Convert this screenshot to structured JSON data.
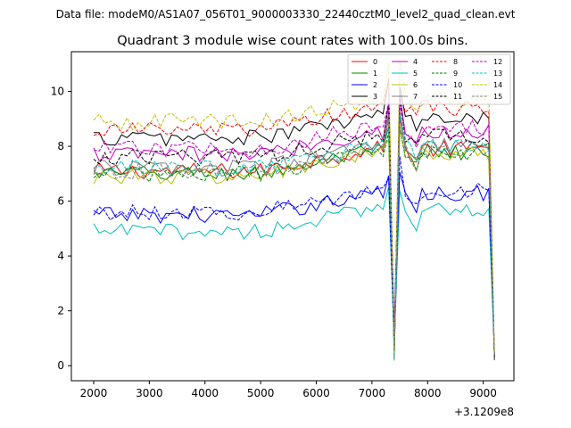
{
  "figure": {
    "suptitle": "Data file: modeM0/AS1A07_056T01_9000003330_22440cztM0_level2_quad_clean.evt"
  },
  "chart_data": {
    "type": "line",
    "title": "Quadrant 3 module wise count rates with 100.0s bins.",
    "xlabel": "",
    "ylabel": "",
    "x_offset_label": "+3.1209e8",
    "xlim": [
      1600,
      9550
    ],
    "ylim": [
      -0.55,
      11.45
    ],
    "xticks": [
      2000,
      3000,
      4000,
      5000,
      6000,
      7000,
      8000,
      9000
    ],
    "xtick_labels": [
      "2000",
      "3000",
      "4000",
      "5000",
      "6000",
      "7000",
      "8000",
      "9000"
    ],
    "yticks": [
      0,
      2,
      4,
      6,
      8,
      10
    ],
    "ytick_labels": [
      "0",
      "2",
      "4",
      "6",
      "8",
      "10"
    ],
    "grid": false,
    "legend_position": "top-right",
    "x_start": 2000,
    "x_step": 100,
    "x_end": 9200,
    "series": [
      {
        "name": "0",
        "color": "#ff0000",
        "dash": "solid",
        "base": 7.1,
        "noise": 0.3
      },
      {
        "name": "1",
        "color": "#008000",
        "dash": "solid",
        "base": 7.0,
        "noise": 0.3
      },
      {
        "name": "2",
        "color": "#0000ff",
        "dash": "solid",
        "base": 5.5,
        "noise": 0.3
      },
      {
        "name": "3",
        "color": "#000000",
        "dash": "solid",
        "base": 8.3,
        "noise": 0.3
      },
      {
        "name": "4",
        "color": "#bf00bf",
        "dash": "solid",
        "base": 7.7,
        "noise": 0.3
      },
      {
        "name": "5",
        "color": "#00bfbf",
        "dash": "solid",
        "base": 4.9,
        "noise": 0.3
      },
      {
        "name": "6",
        "color": "#bfbf00",
        "dash": "solid",
        "base": 6.9,
        "noise": 0.3
      },
      {
        "name": "7",
        "color": "#808080",
        "dash": "solid",
        "base": 7.2,
        "noise": 0.3
      },
      {
        "name": "8",
        "color": "#ff0000",
        "dash": "dashed",
        "base": 8.6,
        "noise": 0.3
      },
      {
        "name": "9",
        "color": "#008000",
        "dash": "dashed",
        "base": 7.0,
        "noise": 0.3
      },
      {
        "name": "10",
        "color": "#0000ff",
        "dash": "dashed",
        "base": 5.6,
        "noise": 0.3
      },
      {
        "name": "11",
        "color": "#000000",
        "dash": "dashed",
        "base": 7.6,
        "noise": 0.3
      },
      {
        "name": "12",
        "color": "#bf00bf",
        "dash": "dashed",
        "base": 7.9,
        "noise": 0.3
      },
      {
        "name": "13",
        "color": "#00bfbf",
        "dash": "dashed",
        "base": 7.2,
        "noise": 0.3
      },
      {
        "name": "14",
        "color": "#bfbf00",
        "dash": "dashed",
        "base": 8.9,
        "noise": 0.3
      },
      {
        "name": "15",
        "color": "#808080",
        "dash": "dashed",
        "base": 7.1,
        "noise": 0.3
      }
    ],
    "features": {
      "dip_1_x": 7400,
      "dip_1_value": 0.1,
      "peak_after_dip_1_x": 7500,
      "dip_2_x": 9200,
      "dip_2_value": 0.2,
      "trend_mid_x": 7000,
      "trend_rise": 0.8
    }
  }
}
